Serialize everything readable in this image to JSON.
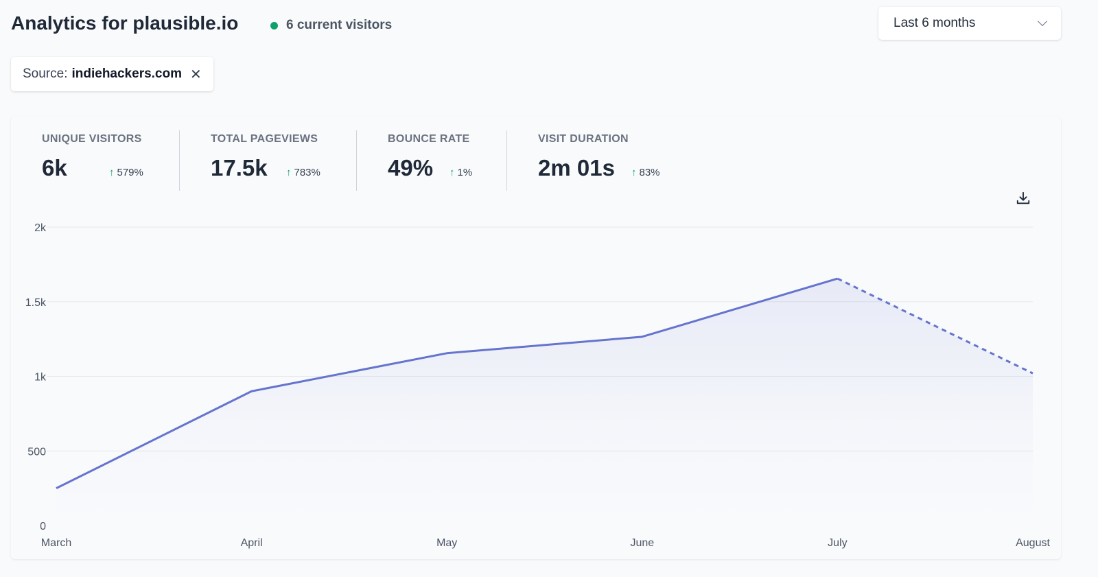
{
  "header": {
    "title": "Analytics for plausible.io",
    "current_visitors": "6 current visitors",
    "period": "Last 6 months"
  },
  "filter": {
    "label": "Source:",
    "value": "indiehackers.com",
    "remove": "✕"
  },
  "stats": [
    {
      "label": "UNIQUE VISITORS",
      "value": "6k",
      "change": "579%",
      "arrow": "↑"
    },
    {
      "label": "TOTAL PAGEVIEWS",
      "value": "17.5k",
      "change": "783%",
      "arrow": "↑"
    },
    {
      "label": "BOUNCE RATE",
      "value": "49%",
      "change": "1%",
      "arrow": "↑"
    },
    {
      "label": "VISIT DURATION",
      "value": "2m 01s",
      "change": "83%",
      "arrow": "↑"
    }
  ],
  "colors": {
    "line": "#6574cd",
    "live_dot": "#10a06a",
    "up": "#10a06a"
  },
  "chart_data": {
    "type": "line",
    "categories": [
      "March",
      "April",
      "May",
      "June",
      "July",
      "August"
    ],
    "series": [
      {
        "values": [
          250,
          900,
          1155,
          1265,
          1655,
          1020
        ]
      }
    ],
    "incomplete_from_index": 4,
    "y_ticks": [
      "0",
      "500",
      "1k",
      "1.5k",
      "2k"
    ],
    "y_tick_values": [
      0,
      500,
      1000,
      1500,
      2000
    ],
    "ylim": [
      0,
      2000
    ],
    "grid": true
  }
}
